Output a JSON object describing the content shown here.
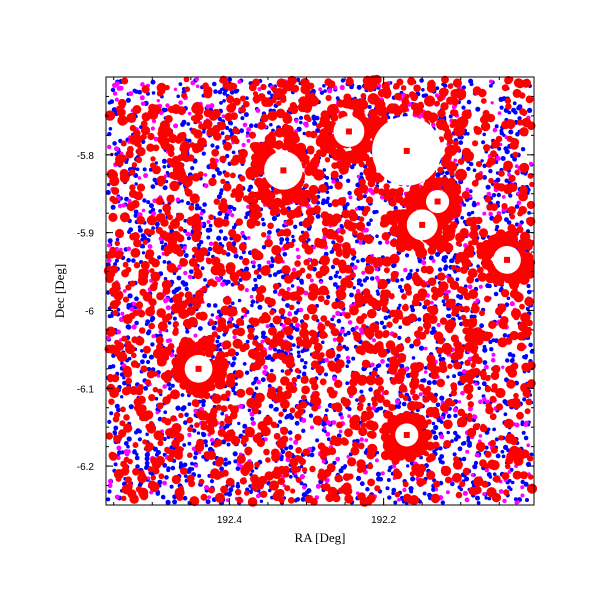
{
  "chart_data": {
    "type": "scatter",
    "title": "",
    "xlabel": "RA [Deg]",
    "ylabel": "Dec [Deg]",
    "xlim": [
      192.56,
      192.005
    ],
    "ylim": [
      -6.25,
      -5.7
    ],
    "x_ticks": [
      {
        "value": 192.4,
        "label": "192.4"
      },
      {
        "value": 192.2,
        "label": "192.2"
      }
    ],
    "y_ticks": [
      {
        "value": -5.8,
        "label": "-5.8"
      },
      {
        "value": -5.9,
        "label": "-5.9"
      },
      {
        "value": -6.0,
        "label": "-6"
      },
      {
        "value": -6.1,
        "label": "-6.1"
      },
      {
        "value": -6.2,
        "label": "-6.2"
      }
    ],
    "grid": false,
    "legend": "none",
    "series": [
      {
        "color": "#0000ff",
        "marker": "dot",
        "approx_count": 2600
      },
      {
        "color": "#ff00ff",
        "marker": "dot",
        "approx_count": 700
      },
      {
        "color": "#ff0000",
        "marker": "dot",
        "approx_count": 1900
      }
    ],
    "masked_regions": [
      {
        "ra": 192.17,
        "dec": -5.795,
        "radius_deg": 0.045
      },
      {
        "ra": 192.245,
        "dec": -5.77,
        "radius_deg": 0.02
      },
      {
        "ra": 192.33,
        "dec": -5.82,
        "radius_deg": 0.025
      },
      {
        "ra": 192.13,
        "dec": -5.86,
        "radius_deg": 0.015
      },
      {
        "ra": 192.15,
        "dec": -5.89,
        "radius_deg": 0.02
      },
      {
        "ra": 192.04,
        "dec": -5.935,
        "radius_deg": 0.018
      },
      {
        "ra": 192.44,
        "dec": -6.075,
        "radius_deg": 0.018
      },
      {
        "ra": 192.17,
        "dec": -6.16,
        "radius_deg": 0.015
      }
    ]
  }
}
